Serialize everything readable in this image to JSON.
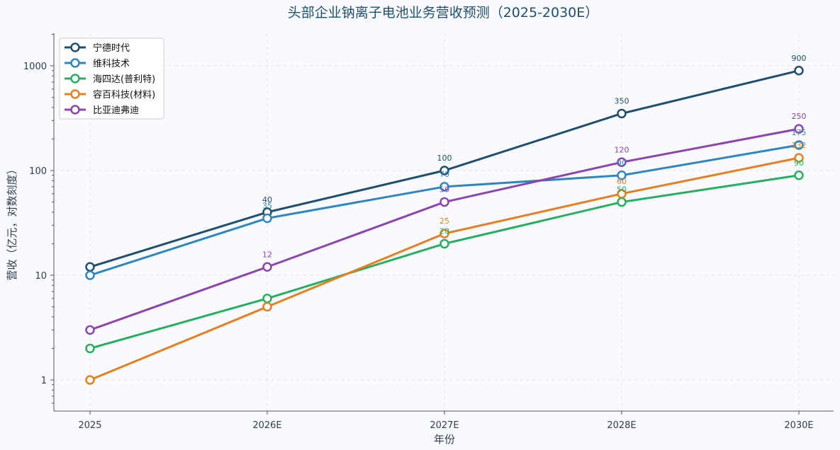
{
  "chart_data": {
    "type": "line",
    "title": "头部企业钠离子电池业务营收预测（2025-2030E）",
    "xlabel": "年份",
    "ylabel": "营收（亿元，对数刻度）",
    "y_scale": "log",
    "ylim": [
      0.5,
      2000
    ],
    "y_ticks": [
      1,
      10,
      100,
      1000
    ],
    "y_tick_labels": [
      "1",
      "10",
      "100",
      "1000"
    ],
    "categories": [
      "2025",
      "2026E",
      "2027E",
      "2028E",
      "2030E"
    ],
    "grid": true,
    "legend_position": "top-left",
    "series": [
      {
        "name": "宁德时代",
        "color": "#1f4e6e",
        "values": [
          12,
          40,
          100,
          350,
          900
        ],
        "labels": [
          "",
          "40",
          "100",
          "350",
          "900"
        ]
      },
      {
        "name": "维科技术",
        "color": "#2e86c1",
        "values": [
          10,
          35,
          70,
          90,
          175
        ],
        "labels": [
          "",
          "35",
          "70",
          "90",
          "175"
        ]
      },
      {
        "name": "海四达(普利特)",
        "color": "#27ae60",
        "values": [
          2,
          6,
          20,
          50,
          90
        ],
        "labels": [
          "",
          "",
          "20",
          "50",
          "90"
        ]
      },
      {
        "name": "容百科技(材料)",
        "color": "#e67e22",
        "values": [
          1,
          5,
          25,
          60,
          132
        ],
        "labels": [
          "",
          "",
          "25",
          "60",
          "132"
        ]
      },
      {
        "name": "比亚迪弗迪",
        "color": "#8e44ad",
        "values": [
          3,
          12,
          50,
          120,
          250
        ],
        "labels": [
          "",
          "12",
          "50",
          "120",
          "250"
        ]
      }
    ]
  }
}
